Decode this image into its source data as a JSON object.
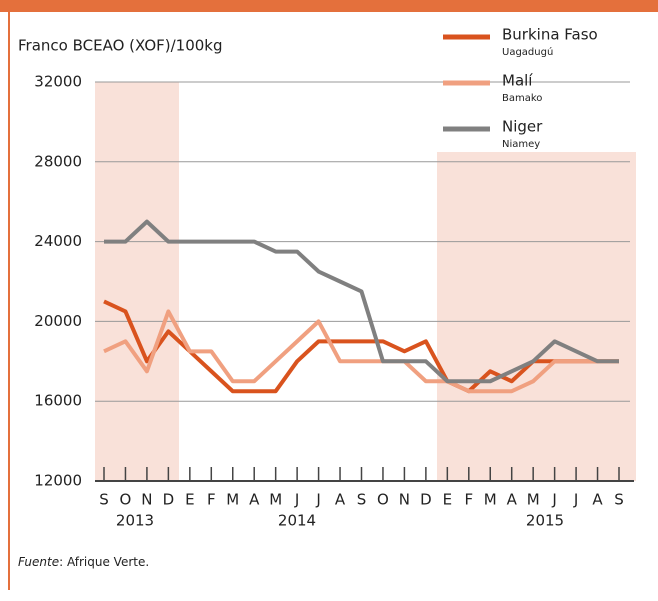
{
  "chart_data": {
    "type": "line",
    "y_label": "Franco BCEAO (XOF)/100kg",
    "categories": [
      "S",
      "O",
      "N",
      "D",
      "E",
      "F",
      "M",
      "A",
      "M",
      "J",
      "J",
      "A",
      "S",
      "O",
      "N",
      "D",
      "E",
      "F",
      "M",
      "A",
      "M",
      "J",
      "J",
      "A",
      "S"
    ],
    "years": [
      "2013",
      "2014",
      "2015"
    ],
    "series": [
      {
        "name": "Burkina Faso",
        "city": "Uagadugú",
        "color": "#d9531e",
        "values": [
          21000,
          20500,
          18000,
          19500,
          18500,
          17500,
          16500,
          16500,
          16500,
          18000,
          19000,
          19000,
          19000,
          19000,
          18500,
          19000,
          17000,
          16500,
          17500,
          17000,
          18000,
          18000,
          18000,
          18000,
          18000
        ]
      },
      {
        "name": "Malí",
        "city": "Bamako",
        "color": "#f0a080",
        "values": [
          18500,
          19000,
          17500,
          20500,
          18500,
          18500,
          17000,
          17000,
          18000,
          19000,
          20000,
          18000,
          18000,
          18000,
          18000,
          17000,
          17000,
          16500,
          16500,
          16500,
          17000,
          18000,
          18000,
          18000,
          18000
        ]
      },
      {
        "name": "Niger",
        "city": "Niamey",
        "color": "#808080",
        "values": [
          24000,
          24000,
          25000,
          24000,
          24000,
          24000,
          24000,
          24000,
          23500,
          23500,
          22500,
          22000,
          21500,
          18000,
          18000,
          18000,
          17000,
          17000,
          17000,
          17500,
          18000,
          19000,
          18500,
          18000,
          18000
        ]
      }
    ],
    "ylim": [
      12000,
      32000
    ],
    "yticks": [
      12000,
      16000,
      20000,
      24000,
      28000,
      32000
    ],
    "grid": true,
    "source": {
      "label": "Fuente",
      "text": ": Afrique Verte."
    }
  }
}
